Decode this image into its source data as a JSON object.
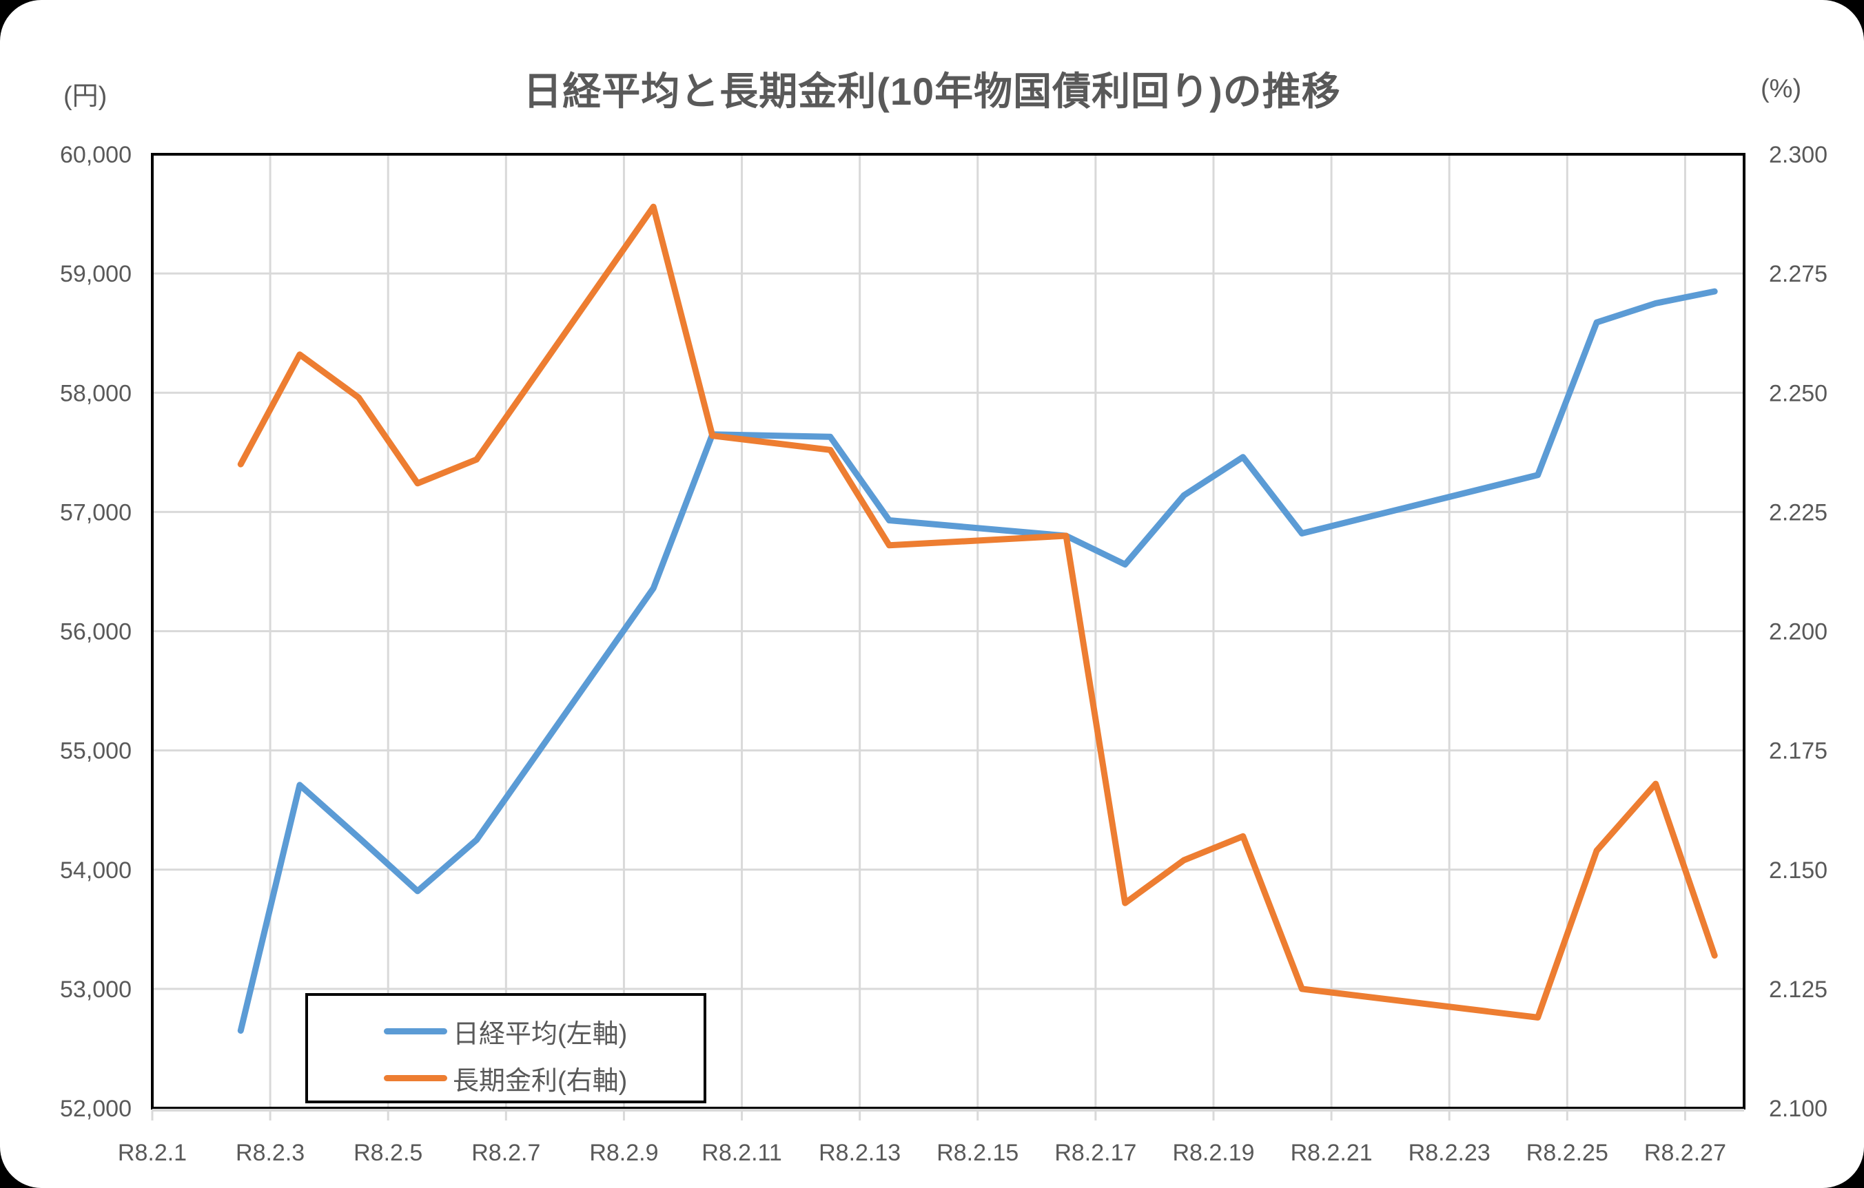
{
  "header": {
    "title": "日経平均と長期金利(10年物国債利回り)の推移",
    "left_unit": "(円)",
    "right_unit": "(%)"
  },
  "legend": {
    "items": [
      {
        "label": "日経平均(左軸)",
        "color": "#5B9BD5"
      },
      {
        "label": "長期金利(右軸)",
        "color": "#ED7D31"
      }
    ]
  },
  "axes": {
    "left_ticks": [
      "60,000",
      "59,000",
      "58,000",
      "57,000",
      "56,000",
      "55,000",
      "54,000",
      "53,000",
      "52,000"
    ],
    "right_ticks": [
      "2.300",
      "2.275",
      "2.250",
      "2.225",
      "2.200",
      "2.175",
      "2.150",
      "2.125",
      "2.100"
    ],
    "x_ticks": [
      "R8.2.1",
      "R8.2.3",
      "R8.2.5",
      "R8.2.7",
      "R8.2.9",
      "R8.2.11",
      "R8.2.13",
      "R8.2.15",
      "R8.2.17",
      "R8.2.19",
      "R8.2.21",
      "R8.2.23",
      "R8.2.25",
      "R8.2.27"
    ]
  },
  "chart_data": {
    "type": "line",
    "title": "日経平均と長期金利(10年物国債利回り)の推移",
    "xlabel": "",
    "ylabel": "(円)",
    "y2label": "(%)",
    "ylim": [
      52000,
      60000
    ],
    "y2lim": [
      2.1,
      2.3
    ],
    "grid": true,
    "legend_position": "lower-left inside",
    "x_days": [
      2,
      3,
      4,
      5,
      6,
      9,
      10,
      12,
      13,
      16,
      17,
      18,
      19,
      20,
      24,
      25,
      26,
      27
    ],
    "x": [
      "R8.2.2",
      "R8.2.3",
      "R8.2.4",
      "R8.2.5",
      "R8.2.6",
      "R8.2.9",
      "R8.2.10",
      "R8.2.12",
      "R8.2.13",
      "R8.2.16",
      "R8.2.17",
      "R8.2.18",
      "R8.2.19",
      "R8.2.20",
      "R8.2.24",
      "R8.2.25",
      "R8.2.26",
      "R8.2.27"
    ],
    "series": [
      {
        "name": "日経平均(左軸)",
        "axis": "left",
        "color": "#5B9BD5",
        "values": [
          52650,
          54710,
          54270,
          53820,
          54250,
          56360,
          57650,
          57630,
          56930,
          56800,
          56560,
          57140,
          57460,
          56820,
          57310,
          58590,
          58750,
          58850
        ]
      },
      {
        "name": "長期金利(右軸)",
        "axis": "right",
        "color": "#ED7D31",
        "values": [
          2.235,
          2.258,
          2.249,
          2.231,
          2.236,
          2.289,
          2.241,
          2.238,
          2.218,
          2.22,
          2.143,
          2.152,
          2.157,
          2.125,
          2.119,
          2.154,
          2.168,
          2.132
        ]
      }
    ]
  }
}
